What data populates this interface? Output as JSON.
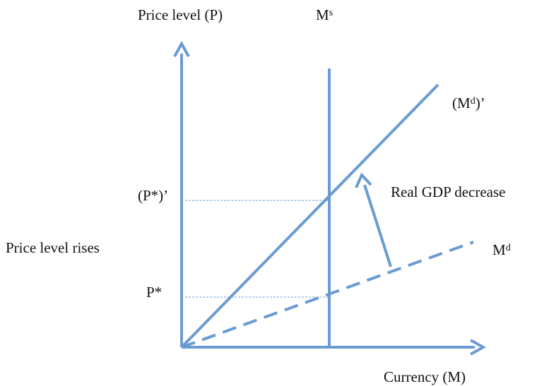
{
  "y_axis_label": "Price level (P)",
  "x_axis_label": "Currency (M)",
  "money_supply_label": {
    "base": "M",
    "sup": "s"
  },
  "money_demand_label": {
    "base": "M",
    "sup": "d"
  },
  "new_money_demand_label": {
    "prefix": "(",
    "base": "M",
    "sup": "d",
    "suffix": ")’"
  },
  "new_price_label": "(P*)’",
  "price_label": "P*",
  "shift_label": "Real GDP decrease",
  "effect_label": "Price level rises"
}
